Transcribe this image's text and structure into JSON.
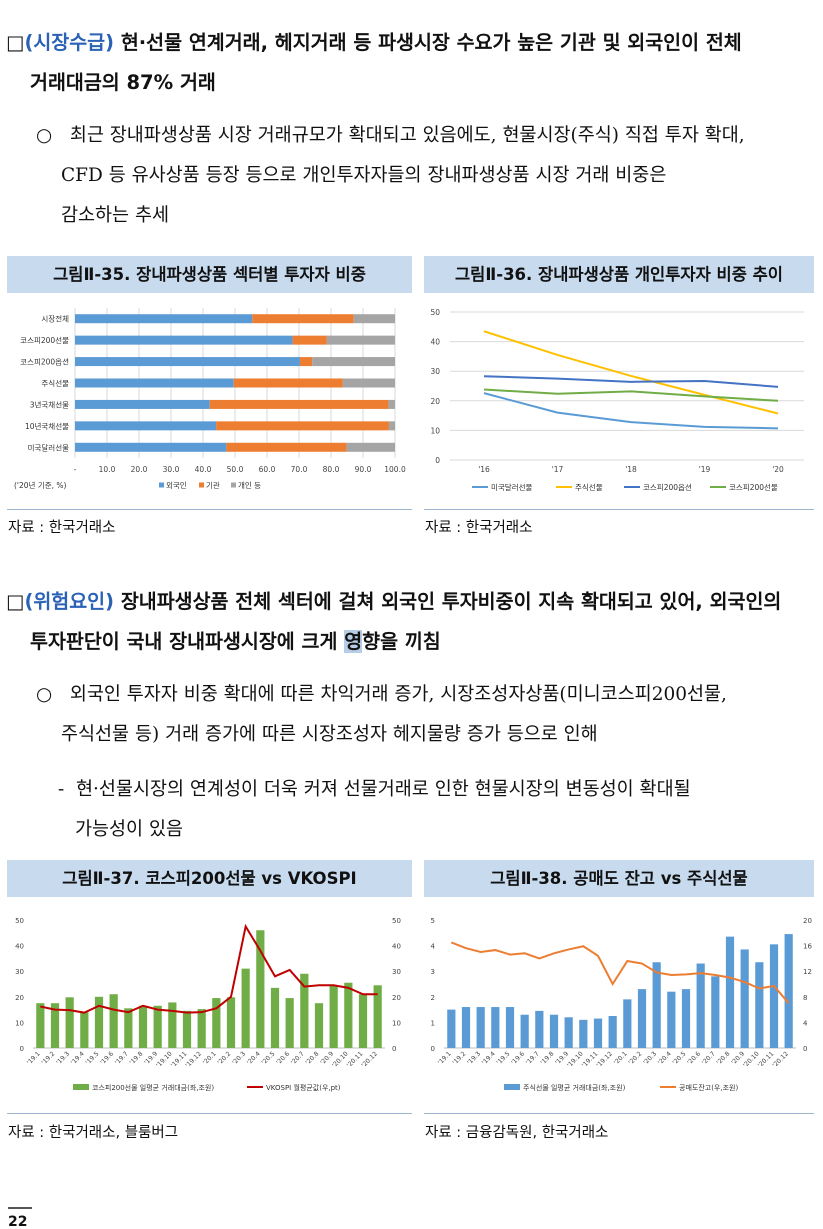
{
  "sections": [
    {
      "box": "□",
      "label": "(시장수급)",
      "headline_l1": " 현·선물 연계거래, 헤지거래 등 파생시장 수요가 높은 기관 및 외국인이 전체",
      "headline_l2": "거래대금의 87% 거래",
      "bullet_mark": "○",
      "bullet_l1": "최근 장내파생상품 시장 거래규모가 확대되고 있음에도, 현물시장(주식) 직접 투자 확대,",
      "bullet_l2": "CFD 등 유사상품 등장 등으로 개인투자자들의 장내파생상품 시장 거래 비중은",
      "bullet_l3": "감소하는 추세"
    },
    {
      "box": "□",
      "label": "(위험요인)",
      "headline_l1": " 장내파생상품 전체 섹터에 걸쳐 외국인 투자비중이 지속 확대되고 있어, 외국인의",
      "headline_l2_a": "투자판단이 국내 장내파생시장에 크게 ",
      "headline_l2_hl": "영",
      "headline_l2_b": "향을 끼침",
      "bullet_mark": "○",
      "bullet_l1": "외국인 투자자 비중 확대에 따른 차익거래 증가, 시장조성자상품(미니코스피200선물,",
      "bullet_l2": "주식선물 등) 거래 증가에 따른 시장조성자 헤지물량 증가 등으로 인해",
      "dash_mark": "-",
      "dash_l1": "현·선물시장의 연계성이 더욱 커져 선물거래로 인한 현물시장의 변동성이 확대될",
      "dash_l2": "가능성이 있음"
    }
  ],
  "figures": {
    "f35": {
      "title": "그림Ⅱ-35. 장내파생상품 섹터별 투자자 비중",
      "source": "자료 : 한국거래소",
      "note": "('20년 기준, %)"
    },
    "f36": {
      "title": "그림Ⅱ-36. 장내파생상품 개인투자자 비중 추이",
      "source": "자료 : 한국거래소"
    },
    "f37": {
      "title": "그림Ⅱ-37. 코스피200선물 vs VKOSPI",
      "source": "자료 :  한국거래소, 블룸버그"
    },
    "f38": {
      "title": "그림Ⅱ-38. 공매도 잔고 vs 주식선물",
      "source": "자료 :  금융감독원, 한국거래소"
    }
  },
  "page_number": "22",
  "chart_data": [
    {
      "type": "bar",
      "orientation": "horizontal",
      "stacked": true,
      "categories": [
        "시장전체",
        "코스피200선물",
        "코스피200옵션",
        "주식선물",
        "3년국채선물",
        "10년국채선물",
        "미국달러선물"
      ],
      "series": [
        {
          "name": "외국인",
          "values": [
            55.4,
            68.0,
            70.3,
            49.6,
            42.1,
            44.1,
            47.3
          ]
        },
        {
          "name": "기관",
          "values": [
            31.7,
            10.7,
            3.8,
            34.1,
            55.9,
            54.0,
            37.6
          ]
        },
        {
          "name": "개인 등",
          "values": [
            12.9,
            21.3,
            25.9,
            16.3,
            2.0,
            1.9,
            15.1
          ]
        }
      ],
      "xlim": [
        0,
        100
      ],
      "x_ticks": [
        "-",
        "10.0",
        "20.0",
        "30.0",
        "40.0",
        "50.0",
        "60.0",
        "70.0",
        "80.0",
        "90.0",
        "100.0"
      ],
      "colors": [
        "#5b9bd5",
        "#ed7d31",
        "#a5a5a5"
      ],
      "legend": "bottom",
      "grid": true
    },
    {
      "type": "line",
      "x": [
        "'16",
        "'17",
        "'18",
        "'19",
        "'20"
      ],
      "series": [
        {
          "name": "미국달러선물",
          "values": [
            22.6,
            16.0,
            12.8,
            11.2,
            10.7
          ]
        },
        {
          "name": "주식선물",
          "values": [
            43.5,
            35.5,
            28.4,
            22.0,
            15.7
          ]
        },
        {
          "name": "코스피200옵션",
          "values": [
            28.3,
            27.5,
            26.4,
            26.7,
            24.7
          ]
        },
        {
          "name": "코스피200선물",
          "values": [
            23.8,
            22.4,
            23.2,
            21.5,
            20.0
          ]
        }
      ],
      "ylim": [
        0,
        50
      ],
      "y_ticks": [
        0,
        10,
        20,
        30,
        40,
        50
      ],
      "colors": [
        "#5b9bd5",
        "#ffc000",
        "#4472c4",
        "#70ad47"
      ],
      "legend": "bottom",
      "grid": true
    },
    {
      "type": "bar+line",
      "x": [
        "'19.1",
        "'19.2",
        "'19.3",
        "'19.4",
        "'19.5",
        "'19.6",
        "'19.7",
        "'19.8",
        "'19.9",
        "'19.10",
        "'19.11",
        "'19.12",
        "'20.1",
        "'20.2",
        "'20.3",
        "'20.4",
        "'20.5",
        "'20.6",
        "'20.7",
        "'20.8",
        "'20.9",
        "'20.10",
        "'20.11",
        "'20.12"
      ],
      "series": [
        {
          "name": "코스피200선물 일평균 거래대금(좌,조원)",
          "type": "bar",
          "axis": "left",
          "values": [
            17.5,
            17.5,
            19.8,
            14.0,
            20.0,
            21.0,
            15.5,
            16.5,
            16.5,
            17.8,
            14.5,
            15.2,
            19.5,
            19.8,
            31.0,
            46.0,
            23.5,
            19.5,
            29.0,
            17.5,
            24.5,
            25.5,
            21.0,
            24.5
          ]
        },
        {
          "name": "VKOSPI 월평균값(우,pt)",
          "type": "line",
          "axis": "right",
          "values": [
            16.2,
            15.0,
            14.8,
            13.8,
            16.5,
            15.0,
            14.0,
            16.5,
            15.0,
            14.5,
            13.8,
            14.0,
            15.5,
            20.0,
            47.5,
            38.0,
            28.0,
            30.5,
            24.0,
            24.5,
            24.5,
            23.5,
            21.0,
            21.0
          ]
        }
      ],
      "ylim_left": [
        0,
        50
      ],
      "ylim_right": [
        0,
        50
      ],
      "y_ticks": [
        0,
        10,
        20,
        30,
        40,
        50
      ],
      "colors": [
        "#70ad47",
        "#c00000"
      ],
      "legend": "bottom"
    },
    {
      "type": "bar+line",
      "x": [
        "'19.1",
        "'19.2",
        "'19.3",
        "'19.4",
        "'19.5",
        "'19.6",
        "'19.7",
        "'19.8",
        "'19.9",
        "'19.10",
        "'19.11",
        "'19.12",
        "'20.1",
        "'20.2",
        "'20.3",
        "'20.4",
        "'20.5",
        "'20.6",
        "'20.7",
        "'20.8",
        "'20.9",
        "'20.10",
        "'20.11",
        "'20.12"
      ],
      "series": [
        {
          "name": "주식선물 일평균 거래대금(좌,조원)",
          "type": "bar",
          "axis": "left",
          "values": [
            1.5,
            1.6,
            1.6,
            1.6,
            1.6,
            1.3,
            1.45,
            1.3,
            1.2,
            1.1,
            1.15,
            1.25,
            1.9,
            2.3,
            3.35,
            2.2,
            2.3,
            3.3,
            2.8,
            4.35,
            3.85,
            3.35,
            4.05,
            4.45
          ]
        },
        {
          "name": "공매도잔고(우,조원)",
          "type": "line",
          "axis": "right",
          "values": [
            16.5,
            15.6,
            15.0,
            15.3,
            14.6,
            14.8,
            14.0,
            14.8,
            15.4,
            15.9,
            14.4,
            10.0,
            13.6,
            13.2,
            11.8,
            11.4,
            11.5,
            11.7,
            11.4,
            11.0,
            10.3,
            9.3,
            9.7,
            7.0
          ]
        }
      ],
      "ylim_left": [
        0,
        5
      ],
      "ylim_right": [
        0,
        20
      ],
      "y_ticks_left": [
        0,
        1,
        2,
        3,
        4,
        5
      ],
      "y_ticks_right": [
        0,
        4,
        8,
        12,
        16,
        20
      ],
      "colors": [
        "#5b9bd5",
        "#ed7d31"
      ],
      "legend": "bottom"
    }
  ]
}
